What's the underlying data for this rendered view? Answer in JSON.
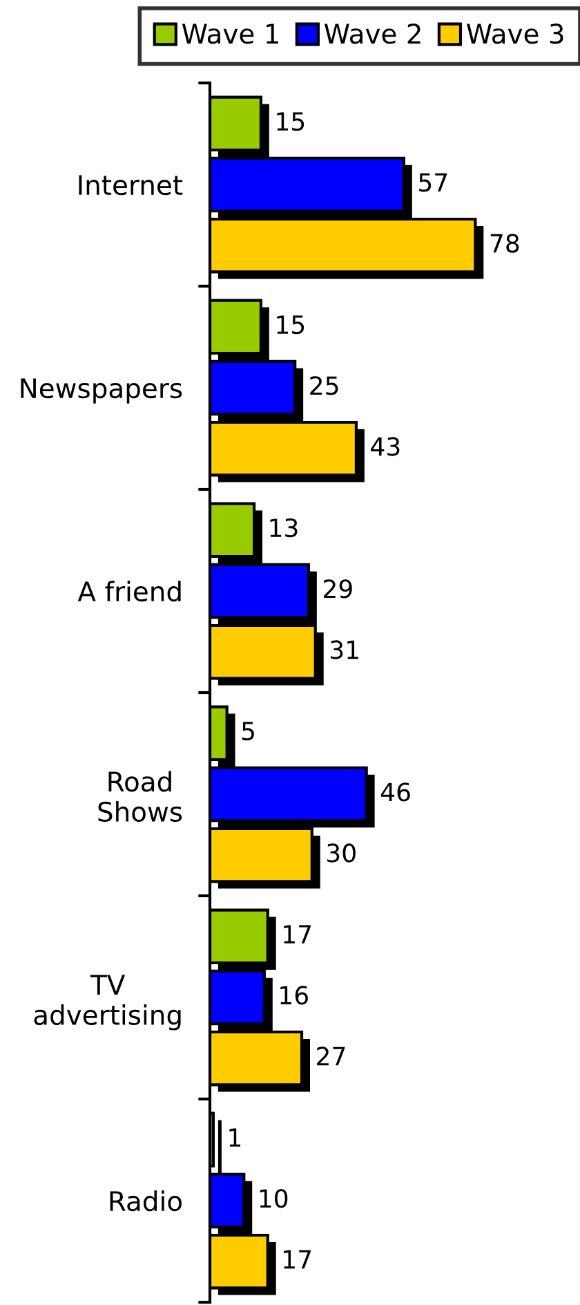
{
  "chart_data": {
    "type": "bar",
    "orientation": "horizontal",
    "categories": [
      "Internet",
      "Newspapers",
      "A friend",
      "Road\nShows",
      "TV\nadvertising",
      "Radio"
    ],
    "series": [
      {
        "name": "Wave 1",
        "color": "#99cc00",
        "values": [
          15,
          15,
          13,
          5,
          17,
          1
        ]
      },
      {
        "name": "Wave 2",
        "color": "#0000ff",
        "values": [
          57,
          25,
          29,
          46,
          16,
          10
        ]
      },
      {
        "name": "Wave 3",
        "color": "#ffcc00",
        "values": [
          78,
          43,
          31,
          30,
          27,
          17
        ]
      }
    ],
    "tick_labels": "y",
    "data_labels": true,
    "legend": "top right"
  }
}
